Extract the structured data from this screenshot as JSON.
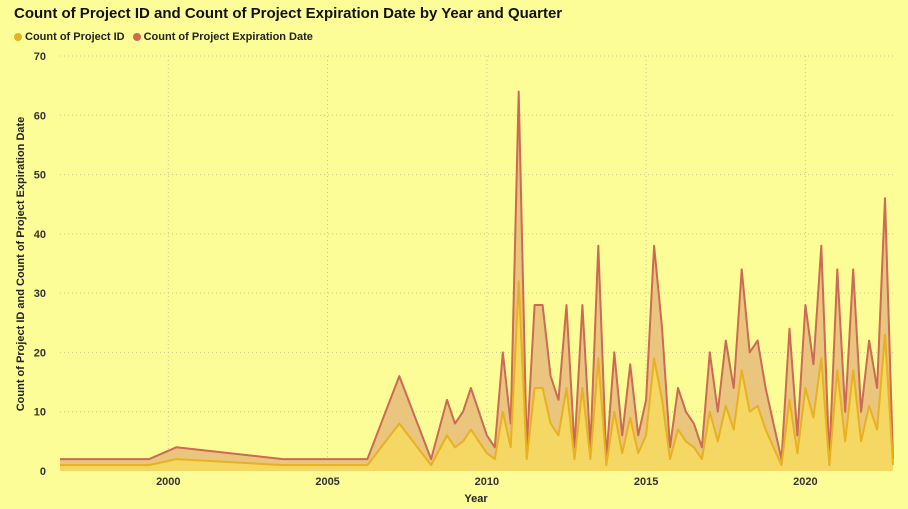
{
  "chart_data": {
    "type": "area",
    "title": "Count of Project ID and Count of Project Expiration Date by Year and Quarter",
    "xlabel": "Year",
    "ylabel": "Count of Project ID and Count of Project Expiration Date",
    "xlim": [
      1996.6,
      2022.75
    ],
    "ylim": [
      0,
      70
    ],
    "x_ticks": [
      2000,
      2005,
      2010,
      2015,
      2020
    ],
    "y_ticks": [
      0,
      10,
      20,
      30,
      40,
      50,
      60,
      70
    ],
    "grid": true,
    "legend": "top-left",
    "x": [
      1996.6,
      1998.0,
      1999.4,
      2000.25,
      2003.6,
      2006.25,
      2007.25,
      2008.25,
      2008.75,
      2009.0,
      2009.25,
      2009.5,
      2009.75,
      2010.0,
      2010.25,
      2010.5,
      2010.75,
      2011.0,
      2011.25,
      2011.5,
      2011.75,
      2012.0,
      2012.25,
      2012.5,
      2012.75,
      2013.0,
      2013.25,
      2013.5,
      2013.75,
      2014.0,
      2014.25,
      2014.5,
      2014.75,
      2015.0,
      2015.25,
      2015.5,
      2015.75,
      2016.0,
      2016.25,
      2016.5,
      2016.75,
      2017.0,
      2017.25,
      2017.5,
      2017.75,
      2018.0,
      2018.25,
      2018.5,
      2018.75,
      2019.0,
      2019.25,
      2019.5,
      2019.75,
      2020.0,
      2020.25,
      2020.5,
      2020.75,
      2021.0,
      2021.25,
      2021.5,
      2021.75,
      2022.0,
      2022.25,
      2022.5,
      2022.75
    ],
    "series": [
      {
        "name": "Count of Project ID",
        "color": "#e8b11f",
        "values": [
          1,
          1,
          1,
          2,
          1,
          1,
          8,
          1,
          6,
          4,
          5,
          7,
          5,
          3,
          2,
          10,
          4,
          32,
          2,
          14,
          14,
          8,
          6,
          14,
          2,
          14,
          2,
          19,
          1,
          10,
          3,
          9,
          3,
          6,
          19,
          12,
          2,
          7,
          5,
          4,
          2,
          10,
          5,
          11,
          7,
          17,
          10,
          11,
          7,
          4,
          1,
          12,
          3,
          14,
          9,
          19,
          1,
          17,
          5,
          17,
          5,
          11,
          7,
          23,
          1
        ]
      },
      {
        "name": "Count of Project Expiration Date",
        "color": "#cc6a55",
        "values": [
          2,
          2,
          2,
          4,
          2,
          2,
          16,
          2,
          12,
          8,
          10,
          14,
          10,
          6,
          4,
          20,
          8,
          64,
          4,
          28,
          28,
          16,
          12,
          28,
          4,
          28,
          4,
          38,
          2,
          20,
          6,
          18,
          6,
          12,
          38,
          24,
          4,
          14,
          10,
          8,
          4,
          20,
          10,
          22,
          14,
          34,
          20,
          22,
          14,
          8,
          2,
          24,
          6,
          28,
          18,
          38,
          2,
          34,
          10,
          34,
          10,
          22,
          14,
          46,
          2
        ]
      }
    ]
  }
}
